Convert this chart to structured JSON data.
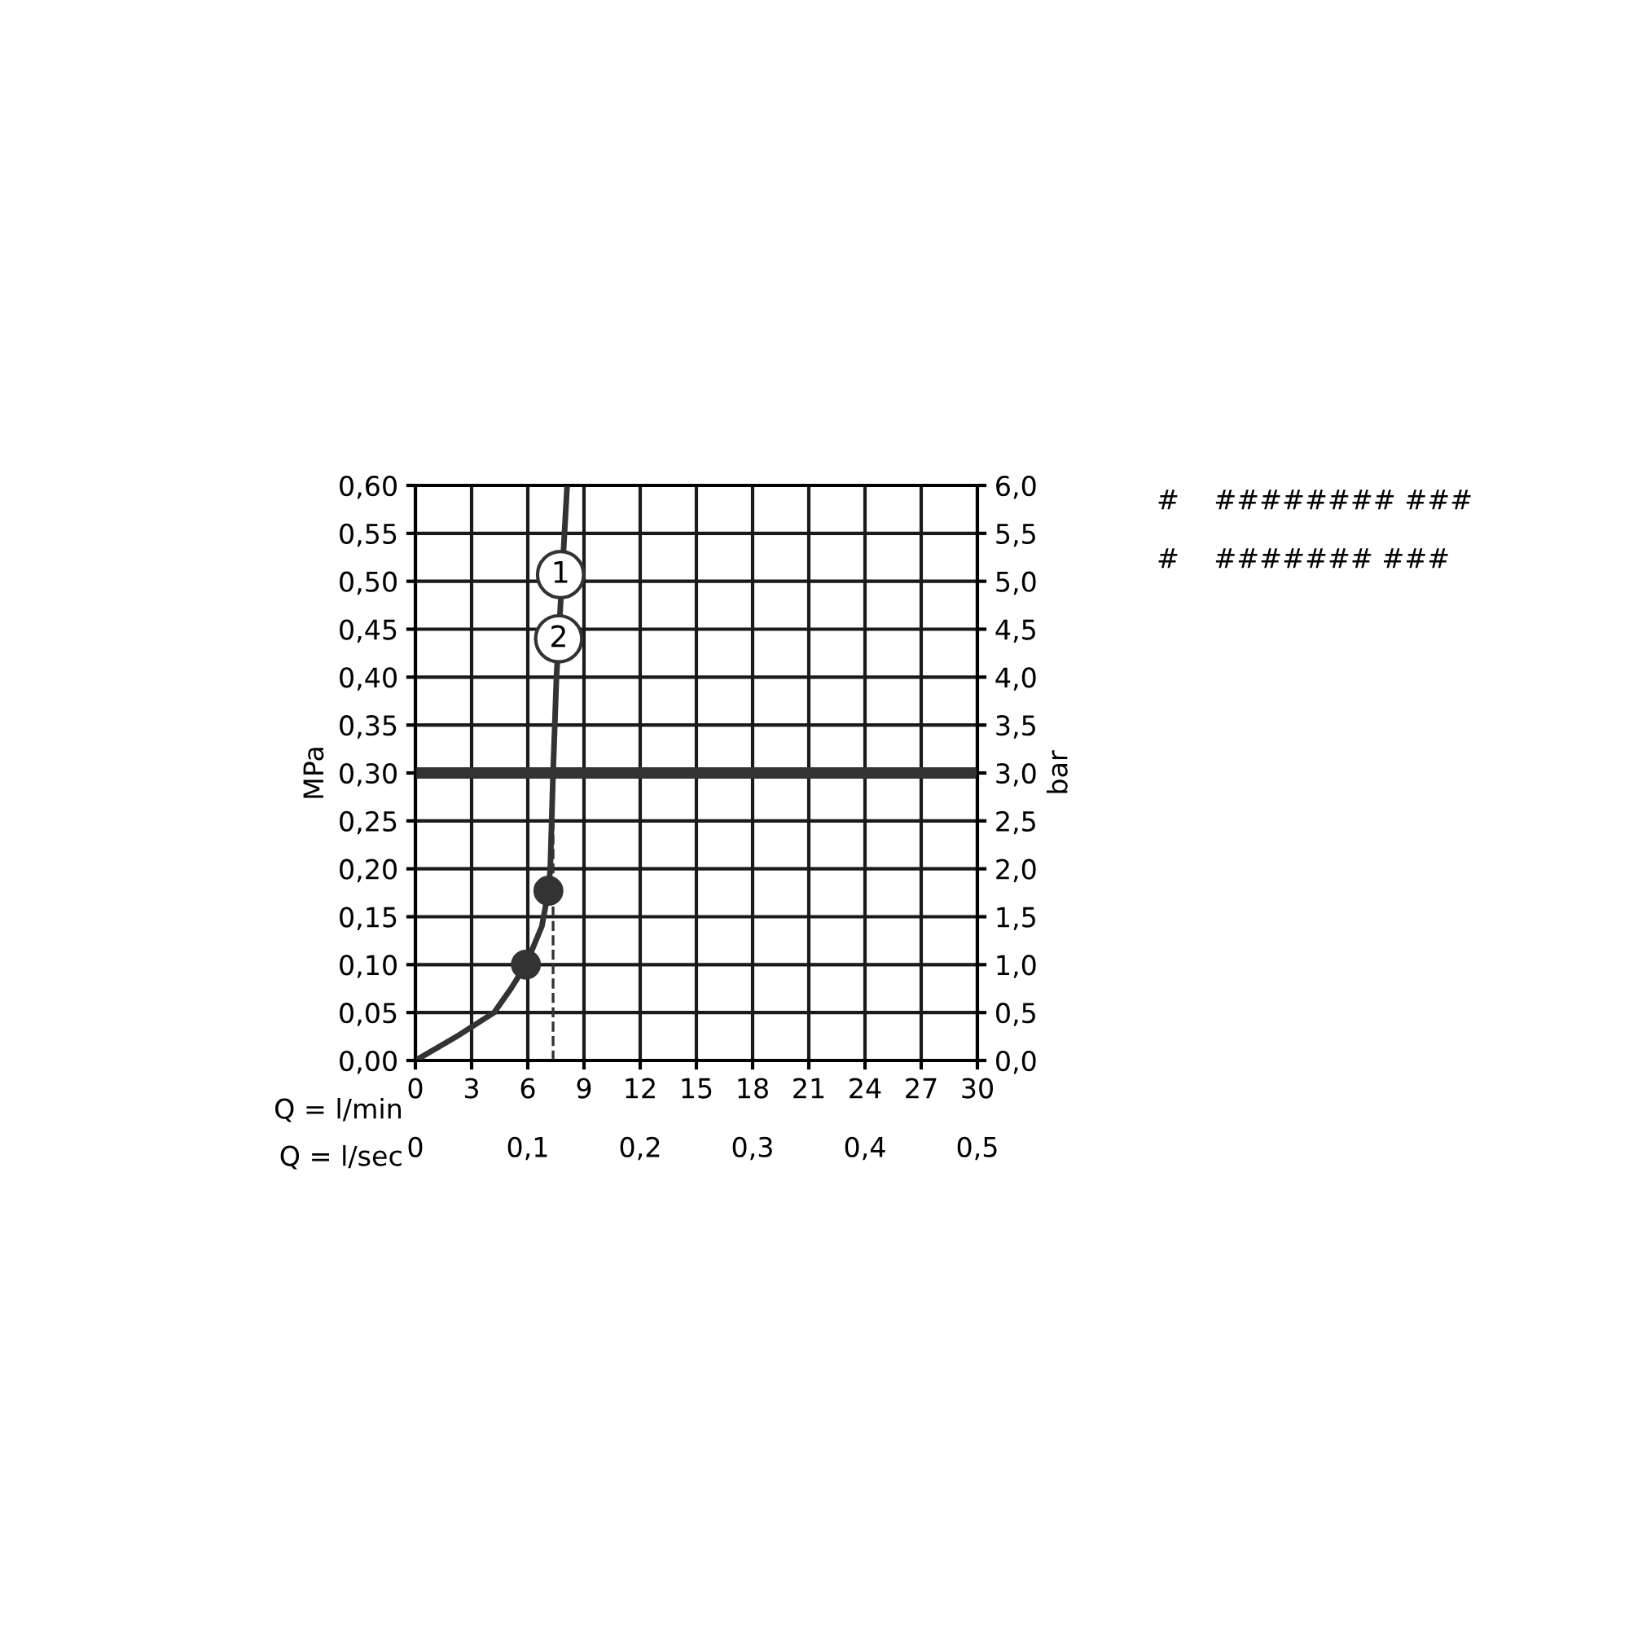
{
  "chart_data": {
    "type": "line",
    "xlabel": "Q = l/min",
    "x2label": "Q = l/sec",
    "ylabel": "MPa",
    "y2label": "bar",
    "xlim": [
      0,
      30
    ],
    "xticks": [
      0,
      3,
      6,
      9,
      12,
      15,
      18,
      21,
      24,
      27,
      30
    ],
    "x2lim": [
      0,
      0.5
    ],
    "x2ticks": [
      0,
      {
        "value": 0.1,
        "label": "0,1"
      },
      {
        "value": 0.2,
        "label": "0,2"
      },
      {
        "value": 0.3,
        "label": "0,3"
      },
      {
        "value": 0.4,
        "label": "0,4"
      },
      {
        "value": 0.5,
        "label": "0,5"
      }
    ],
    "ylim": [
      0,
      0.6
    ],
    "yticks": [
      {
        "value": 0,
        "label": "0,00"
      },
      {
        "value": 0.05,
        "label": "0,05"
      },
      {
        "value": 0.1,
        "label": "0,10"
      },
      {
        "value": 0.15,
        "label": "0,15"
      },
      {
        "value": 0.2,
        "label": "0,20"
      },
      {
        "value": 0.25,
        "label": "0,25"
      },
      {
        "value": 0.3,
        "label": "0,30"
      },
      {
        "value": 0.35,
        "label": "0,35"
      },
      {
        "value": 0.4,
        "label": "0,40"
      },
      {
        "value": 0.45,
        "label": "0,45"
      },
      {
        "value": 0.5,
        "label": "0,50"
      },
      {
        "value": 0.55,
        "label": "0,55"
      },
      {
        "value": 0.6,
        "label": "0,60"
      }
    ],
    "y2lim": [
      0,
      6
    ],
    "y2ticks": [
      {
        "value": 0,
        "label": "0,0"
      },
      {
        "value": 0.5,
        "label": "0,5"
      },
      {
        "value": 1,
        "label": "1,0"
      },
      {
        "value": 1.5,
        "label": "1,5"
      },
      {
        "value": 2,
        "label": "2,0"
      },
      {
        "value": 2.5,
        "label": "2,5"
      },
      {
        "value": 3,
        "label": "3,0"
      },
      {
        "value": 3.5,
        "label": "3,5"
      },
      {
        "value": 4,
        "label": "4,0"
      },
      {
        "value": 4.5,
        "label": "4,5"
      },
      {
        "value": 5,
        "label": "5,0"
      },
      {
        "value": 5.5,
        "label": "5,5"
      },
      {
        "value": 6,
        "label": "6,0"
      }
    ],
    "grid": true,
    "series": [
      {
        "color": "#333333",
        "marker": "none",
        "line_style": "solid",
        "x": [
          0,
          2.2,
          4.2,
          5.1,
          5.9,
          6.75,
          7.1,
          7.2,
          7.35,
          7.53,
          8.1
        ],
        "values": [
          0,
          0.025,
          0.05,
          0.075,
          0.1,
          0.14,
          0.177,
          0.2,
          0.3,
          0.4,
          0.6
        ]
      },
      {
        "type": "line",
        "color": "#333333",
        "marker": "none",
        "line_style": "dashed",
        "x": [
          7.35,
          7.35
        ],
        "values": [
          0,
          0.25
        ]
      },
      {
        "type": "scatter",
        "color": "#333333",
        "marker": "circle",
        "x": [
          5.9,
          7.1
        ],
        "values": [
          0.1,
          0.177
        ]
      }
    ],
    "ref_lines": [
      {
        "axis": "y",
        "value": 0.3,
        "color": "#333333"
      }
    ],
    "annotations": [
      {
        "text": "1",
        "x": 7.75,
        "y": 0.507
      },
      {
        "text": "2",
        "x": 7.65,
        "y": 0.44
      },
      "#    ######## ###",
      "#    ####### ###"
    ]
  }
}
